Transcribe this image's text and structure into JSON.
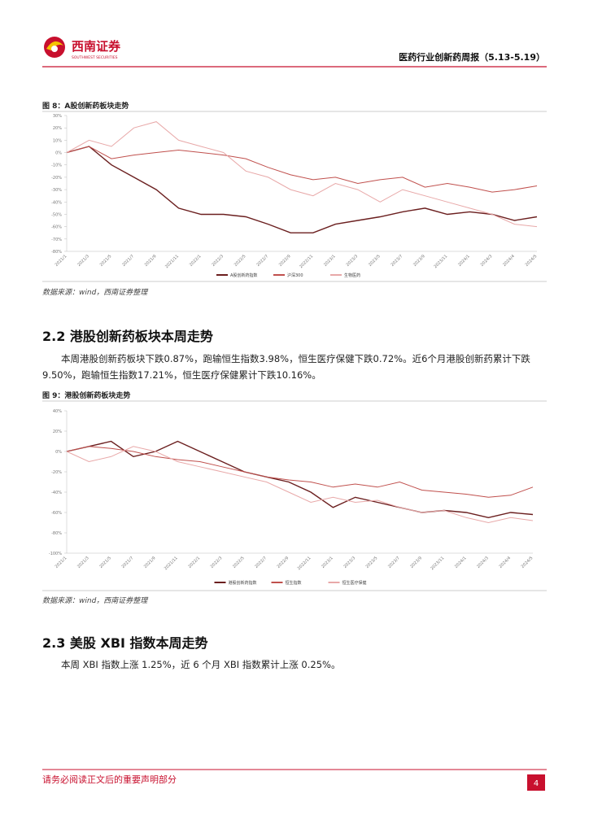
{
  "document": {
    "header": {
      "logo_cn": "西南证券",
      "logo_en": "SOUTHWEST SECURITIES",
      "title": "医药行业创新药周报（5.13-5.19）"
    },
    "figure_8": {
      "caption": "图 8：A股创新药板块走势",
      "source": "数据来源：wind，西南证券整理"
    },
    "section_2_2": {
      "heading": "2.2 港股创新药板块本周走势",
      "paragraph": "本周港股创新药板块下跌0.87%，跑输恒生指数3.98%，恒生医疗保健下跌0.72%。近6个月港股创新药累计下跌9.50%，跑输恒生指数17.21%，恒生医疗保健累计下跌10.16%。"
    },
    "figure_9": {
      "caption": "图 9：港股创新药板块走势",
      "source": "数据来源：wind，西南证券整理"
    },
    "section_2_3": {
      "heading": "2.3 美股 XBI 指数本周走势",
      "paragraph": "本周 XBI 指数上涨 1.25%，近 6 个月 XBI 指数累计上涨 0.25%。"
    },
    "footer": {
      "notice": "请务必阅读正文后的重要声明部分",
      "page": "4"
    }
  },
  "chart_data": [
    {
      "type": "line",
      "categories": [
        "2021/1",
        "2021/3",
        "2021/5",
        "2021/7",
        "2021/9",
        "2021/11",
        "2022/1",
        "2022/3",
        "2022/5",
        "2022/7",
        "2022/9",
        "2022/11",
        "2023/1",
        "2023/3",
        "2023/5",
        "2023/7",
        "2023/9",
        "2023/11",
        "2024/1",
        "2024/3",
        "2024/4",
        "2024/5"
      ],
      "ylim": [
        -80,
        30
      ],
      "yticks": [
        {
          "value": 30,
          "label": "30%"
        },
        {
          "value": 20,
          "label": "20%"
        },
        {
          "value": 10,
          "label": "10%"
        },
        {
          "value": 0,
          "label": "0%"
        },
        {
          "value": -10,
          "label": "-10%"
        },
        {
          "value": -20,
          "label": "-20%"
        },
        {
          "value": -30,
          "label": "-30%"
        },
        {
          "value": -40,
          "label": "-40%"
        },
        {
          "value": -50,
          "label": "-50%"
        },
        {
          "value": -60,
          "label": "-60%"
        },
        {
          "value": -70,
          "label": "-70%"
        },
        {
          "value": -80,
          "label": "-80%"
        }
      ],
      "series": [
        {
          "name": "A股创新药指数",
          "color": "#6b1f1f",
          "values": [
            0,
            5,
            -10,
            -20,
            -30,
            -45,
            -50,
            -50,
            -52,
            -58,
            -65,
            -65,
            -58,
            -55,
            -52,
            -48,
            -45,
            -50,
            -48,
            -50,
            -55,
            -52
          ]
        },
        {
          "name": "沪深300",
          "color": "#c0504d",
          "values": [
            0,
            5,
            -5,
            -2,
            0,
            2,
            0,
            -2,
            -5,
            -12,
            -18,
            -22,
            -20,
            -25,
            -22,
            -20,
            -28,
            -25,
            -28,
            -32,
            -30,
            -27
          ]
        },
        {
          "name": "生物医药",
          "color": "#e8a8a8",
          "values": [
            0,
            10,
            5,
            20,
            25,
            10,
            5,
            0,
            -15,
            -20,
            -30,
            -35,
            -25,
            -30,
            -40,
            -30,
            -35,
            -40,
            -45,
            -50,
            -58,
            -60
          ]
        }
      ]
    },
    {
      "type": "line",
      "categories": [
        "2021/1",
        "2021/3",
        "2021/5",
        "2021/7",
        "2021/9",
        "2021/11",
        "2022/1",
        "2022/3",
        "2022/5",
        "2022/7",
        "2022/9",
        "2022/11",
        "2023/1",
        "2023/3",
        "2023/5",
        "2023/7",
        "2023/9",
        "2023/11",
        "2024/1",
        "2024/3",
        "2024/4",
        "2024/5"
      ],
      "ylim": [
        -100,
        40
      ],
      "yticks": [
        {
          "value": 40,
          "label": "40%"
        },
        {
          "value": 20,
          "label": "20%"
        },
        {
          "value": 0,
          "label": "0%"
        },
        {
          "value": -20,
          "label": "-20%"
        },
        {
          "value": -40,
          "label": "-40%"
        },
        {
          "value": -60,
          "label": "-60%"
        },
        {
          "value": -80,
          "label": "-80%"
        },
        {
          "value": -100,
          "label": "-100%"
        }
      ],
      "series": [
        {
          "name": "港股创新药指数",
          "color": "#6b1f1f",
          "values": [
            0,
            5,
            10,
            -5,
            0,
            10,
            0,
            -10,
            -20,
            -25,
            -30,
            -40,
            -55,
            -45,
            -50,
            -55,
            -60,
            -58,
            -60,
            -65,
            -60,
            -62
          ]
        },
        {
          "name": "恒生指数",
          "color": "#c0504d",
          "values": [
            0,
            5,
            3,
            0,
            -5,
            -8,
            -10,
            -15,
            -20,
            -25,
            -28,
            -30,
            -35,
            -32,
            -35,
            -30,
            -38,
            -40,
            -42,
            -45,
            -43,
            -35
          ]
        },
        {
          "name": "恒生医疗保健",
          "color": "#e8a8a8",
          "values": [
            0,
            -10,
            -5,
            5,
            0,
            -10,
            -15,
            -20,
            -25,
            -30,
            -40,
            -50,
            -45,
            -50,
            -48,
            -55,
            -60,
            -58,
            -65,
            -70,
            -65,
            -68
          ]
        }
      ]
    }
  ]
}
